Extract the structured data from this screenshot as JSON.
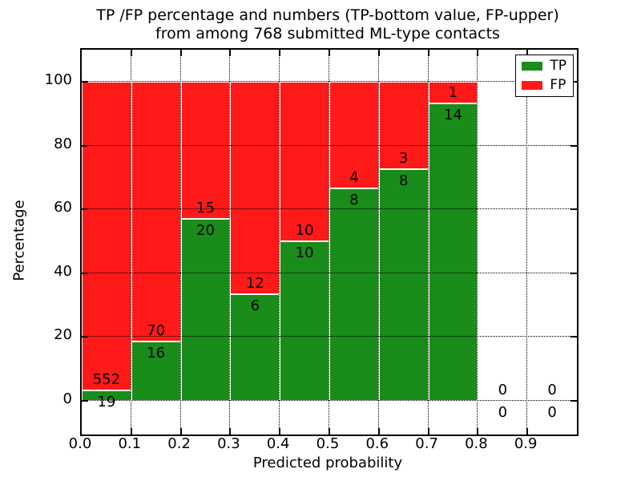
{
  "figure": {
    "title_line1": "TP /FP percentage and numbers (TP-bottom value, FP-upper)",
    "title_line2": "from among 768 submitted ML-type contacts"
  },
  "chart_data": {
    "type": "bar",
    "stacked": true,
    "normalized": "each bar stacks to 100%",
    "title": "TP /FP percentage and numbers (TP-bottom value, FP-upper) from among 768 submitted ML-type contacts",
    "xlabel": "Predicted probability",
    "ylabel": "Percentage",
    "x_tick_labels": [
      "0.0",
      "0.1",
      "0.2",
      "0.3",
      "0.4",
      "0.5",
      "0.6",
      "0.7",
      "0.8",
      "0.9"
    ],
    "y_tick_values": [
      0,
      20,
      40,
      60,
      80,
      100
    ],
    "xlim": [
      0.0,
      1.0
    ],
    "ylim": [
      -10.5,
      110
    ],
    "grid": {
      "visible": true,
      "style": "dotted",
      "color": "#000000",
      "drawn_over_bars": true
    },
    "bin_width": 0.1,
    "categories": [
      0.0,
      0.1,
      0.2,
      0.3,
      0.4,
      0.5,
      0.6,
      0.7,
      0.8,
      0.9
    ],
    "series": [
      {
        "name": "TP",
        "color": "#198c19",
        "values": [
          19,
          16,
          20,
          6,
          10,
          8,
          8,
          14,
          0,
          0
        ]
      },
      {
        "name": "FP",
        "color": "#ff1919",
        "values": [
          552,
          70,
          15,
          12,
          10,
          4,
          3,
          1,
          0,
          0
        ]
      }
    ],
    "tp_percentages": [
      3.3,
      18.6,
      57.1,
      33.3,
      50.0,
      66.7,
      72.7,
      93.3,
      0,
      0
    ],
    "total_contacts": 768,
    "legend": {
      "position": "upper right",
      "entries": [
        {
          "label": "TP",
          "color": "#198c19"
        },
        {
          "label": "FP",
          "color": "#ff1919"
        }
      ]
    }
  },
  "colors": {
    "tp": "#198c19",
    "fp": "#ff1919",
    "background": "#ffffff",
    "axes": "#000000"
  }
}
